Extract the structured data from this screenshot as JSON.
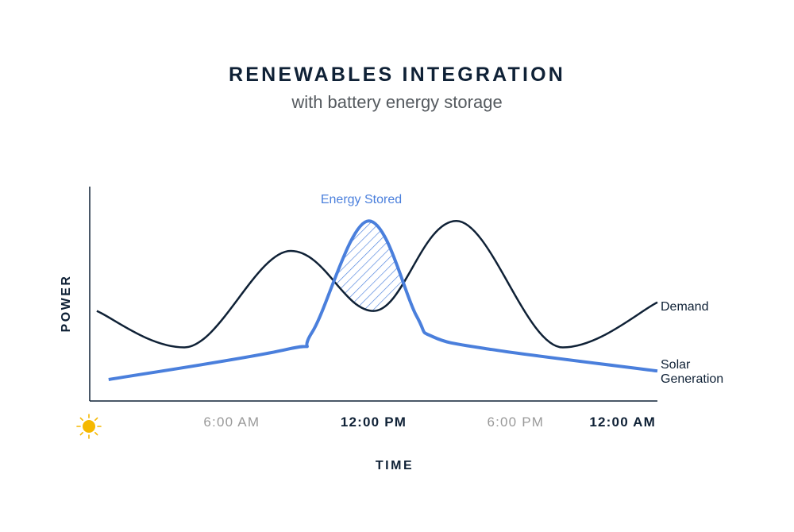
{
  "chart_data": {
    "type": "line",
    "title": "RENEWABLES INTEGRATION",
    "subtitle": "with battery energy storage",
    "xlabel": "TIME",
    "ylabel": "POWER",
    "x_ticks": [
      {
        "label": "6:00 AM",
        "hour": 6,
        "emphasis": false
      },
      {
        "label": "12:00 PM",
        "hour": 12,
        "emphasis": true
      },
      {
        "label": "6:00 PM",
        "hour": 18,
        "emphasis": false
      },
      {
        "label": "12:00 AM",
        "hour": 24,
        "emphasis": true
      }
    ],
    "xlim": [
      0,
      24
    ],
    "ylim": [
      0,
      1
    ],
    "series": [
      {
        "name": "Demand",
        "color": "#0f2136",
        "x": [
          0.3,
          4,
          8.5,
          12,
          15.5,
          20,
          24
        ],
        "y": [
          0.42,
          0.25,
          0.7,
          0.42,
          0.84,
          0.25,
          0.46
        ]
      },
      {
        "name": "Solar Generation",
        "color": "#4a7fdc",
        "label_lines": [
          "Solar",
          "Generation"
        ],
        "x": [
          0.8,
          8.3,
          9.4,
          11.8,
          13.8,
          14.5,
          17,
          24
        ],
        "y": [
          0.1,
          0.24,
          0.32,
          0.84,
          0.4,
          0.3,
          0.24,
          0.14
        ]
      }
    ],
    "annotations": [
      {
        "text": "Energy Stored",
        "color": "#4a7fdc",
        "fill": "hatched area between curves where solar exceeds demand"
      }
    ],
    "grid": false,
    "icon": "sun-icon",
    "axis_color": "#0f2136",
    "tick_colors": {
      "normal": "#999999",
      "emphasis": "#0f2136"
    }
  }
}
